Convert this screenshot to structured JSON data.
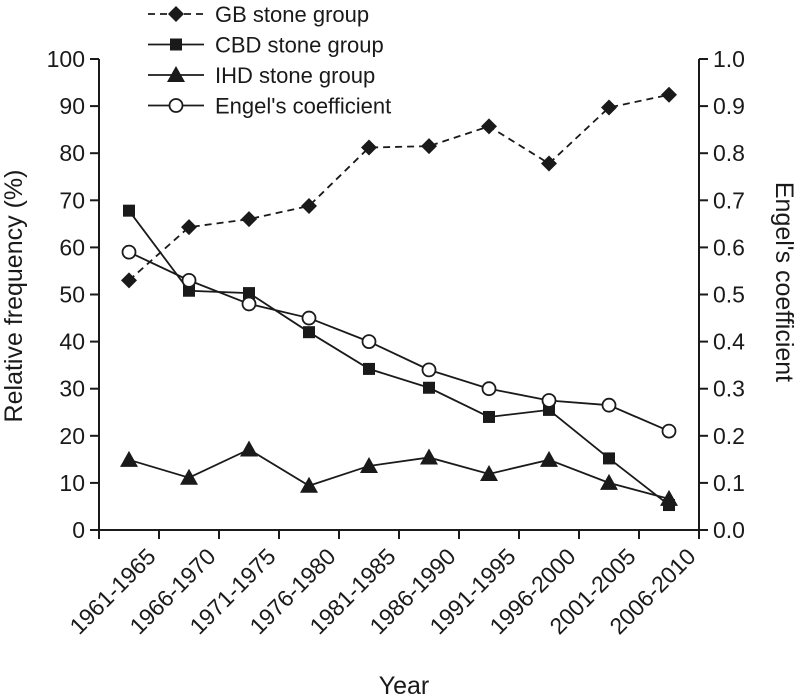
{
  "chart_data": {
    "type": "line",
    "categories": [
      "1961-1965",
      "1966-1970",
      "1971-1975",
      "1976-1980",
      "1981-1985",
      "1986-1990",
      "1991-1995",
      "1996-2000",
      "2001-2005",
      "2006-2010"
    ],
    "series": [
      {
        "name": "GB stone group",
        "axis": "left",
        "marker": "diamond",
        "line_style": "dashed",
        "values": [
          53.0,
          64.3,
          66.0,
          68.8,
          81.2,
          81.5,
          85.7,
          77.8,
          89.7,
          92.4
        ]
      },
      {
        "name": "CBD stone group",
        "axis": "left",
        "marker": "square",
        "line_style": "solid",
        "values": [
          67.8,
          50.8,
          50.3,
          42.0,
          34.2,
          30.2,
          24.0,
          25.5,
          15.2,
          5.3
        ]
      },
      {
        "name": "IHD stone group",
        "axis": "left",
        "marker": "triangle",
        "line_style": "solid",
        "values": [
          14.9,
          11.1,
          17.1,
          9.4,
          13.6,
          15.4,
          11.9,
          14.9,
          10.0,
          6.6
        ]
      },
      {
        "name": "Engel's coefficient",
        "axis": "right",
        "marker": "open-circle",
        "line_style": "solid",
        "values": [
          0.59,
          0.53,
          0.48,
          0.45,
          0.4,
          0.34,
          0.3,
          0.275,
          0.265,
          0.21
        ]
      }
    ],
    "xlabel": "Year",
    "ylabel": "Relative frequency (%)",
    "y2label": "Engel's coefficient",
    "ylim": [
      0,
      100
    ],
    "y2lim": [
      0,
      1.0
    ],
    "yticks": [
      "0",
      "10",
      "20",
      "30",
      "40",
      "50",
      "60",
      "70",
      "80",
      "90",
      "100"
    ],
    "y2ticks": [
      "0.0",
      "0.1",
      "0.2",
      "0.3",
      "0.4",
      "0.5",
      "0.6",
      "0.7",
      "0.8",
      "0.9",
      "1.0"
    ],
    "grid": false,
    "legend_position": "top-left",
    "line_color": "#1a1a1a"
  }
}
